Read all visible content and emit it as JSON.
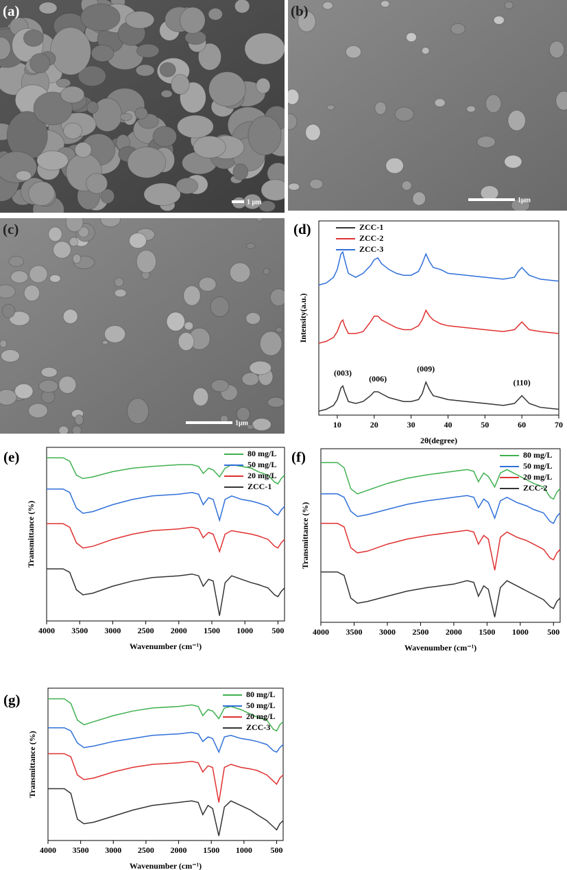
{
  "images": [
    {
      "label": "(a)",
      "scale_bar": "1 μm"
    },
    {
      "label": "(b)",
      "scale_bar": "1μm"
    },
    {
      "label": "(c)",
      "scale_bar": "1μm"
    }
  ],
  "chart_data": [
    {
      "type": "line",
      "panel_label": "(d)",
      "xlabel": "2θ(degree)",
      "ylabel": "Intensity(a.u.)",
      "x": [
        5,
        7,
        9,
        10,
        11,
        11.5,
        12,
        13,
        15,
        17,
        19,
        20,
        21,
        22,
        24,
        26,
        28,
        30,
        32,
        33,
        34,
        35,
        36,
        38,
        40,
        45,
        50,
        55,
        58,
        59,
        60,
        61,
        62,
        65,
        70
      ],
      "xlim": [
        5,
        70
      ],
      "xticks": [
        10,
        20,
        30,
        40,
        50,
        60,
        70
      ],
      "ylim": [
        0,
        100
      ],
      "legend": "upper left",
      "series": [
        {
          "name": "ZCC-1",
          "color": "#333333",
          "values": [
            2,
            3,
            5,
            8,
            14,
            15,
            12,
            7,
            6,
            7,
            10,
            12,
            12,
            11,
            9,
            8,
            7,
            7,
            8,
            11,
            17,
            13,
            10,
            9,
            8,
            7,
            6,
            5,
            6,
            8,
            10,
            8,
            6,
            4,
            3
          ]
        },
        {
          "name": "ZCC-2",
          "color": "#e03030",
          "values": [
            37,
            38,
            40,
            43,
            48,
            49,
            46,
            42,
            42,
            43,
            48,
            51,
            51,
            49,
            47,
            45,
            44,
            44,
            46,
            49,
            54,
            51,
            49,
            47,
            46,
            45,
            44,
            43,
            44,
            46,
            48,
            46,
            44,
            43,
            42
          ]
        },
        {
          "name": "ZCC-3",
          "color": "#2f6fd8",
          "values": [
            67,
            68,
            71,
            75,
            83,
            84,
            80,
            73,
            71,
            73,
            77,
            80,
            81,
            78,
            75,
            73,
            72,
            72,
            74,
            78,
            83,
            79,
            76,
            75,
            73,
            72,
            71,
            70,
            71,
            74,
            76,
            74,
            72,
            70,
            69
          ]
        }
      ],
      "annotations": [
        {
          "text": "(003)",
          "x": 11.5
        },
        {
          "text": "(006)",
          "x": 21
        },
        {
          "text": "(009)",
          "x": 34
        },
        {
          "text": "(110)",
          "x": 60
        }
      ]
    },
    {
      "type": "line",
      "panel_label": "(e)",
      "xlabel": "Wavenumber (cm⁻¹)",
      "ylabel": "Transmittance (%)",
      "x": [
        4000,
        3750,
        3650,
        3550,
        3450,
        3300,
        3000,
        2700,
        2400,
        2000,
        1800,
        1700,
        1630,
        1550,
        1480,
        1384,
        1300,
        1200,
        1050,
        900,
        800,
        650,
        550,
        500,
        450,
        400
      ],
      "xlim": [
        4000,
        400
      ],
      "xticks": [
        4000,
        3500,
        3000,
        2500,
        2000,
        1500,
        1000,
        500
      ],
      "ylim": [
        0,
        100
      ],
      "legend": "upper right",
      "series": [
        {
          "name": "80 mg/L",
          "color": "#3fb04f",
          "values": [
            94,
            94,
            92,
            84,
            82,
            83,
            86,
            88,
            89,
            90,
            90,
            89,
            85,
            88,
            87,
            83,
            88,
            90,
            89,
            88,
            86,
            84,
            80,
            79,
            82,
            84
          ]
        },
        {
          "name": "50 mg/L",
          "color": "#2f6fd8",
          "values": [
            76,
            76,
            74,
            65,
            62,
            63,
            67,
            70,
            72,
            73,
            74,
            73,
            67,
            71,
            70,
            58,
            70,
            72,
            70,
            69,
            68,
            66,
            62,
            61,
            64,
            66
          ]
        },
        {
          "name": "20 mg/L",
          "color": "#e03030",
          "values": [
            56,
            56,
            54,
            45,
            42,
            43,
            47,
            50,
            52,
            53,
            54,
            53,
            48,
            51,
            50,
            40,
            50,
            52,
            51,
            50,
            49,
            47,
            43,
            42,
            45,
            47
          ]
        },
        {
          "name": "ZCC-1",
          "color": "#333333",
          "values": [
            30,
            30,
            28,
            18,
            15,
            16,
            20,
            23,
            25,
            26,
            27,
            26,
            20,
            24,
            23,
            3,
            22,
            26,
            24,
            22,
            21,
            19,
            15,
            14,
            17,
            19
          ]
        }
      ]
    },
    {
      "type": "line",
      "panel_label": "(f)",
      "xlabel": "Wavenumber (cm⁻¹)",
      "ylabel": "Transmittance (%)",
      "x": [
        4000,
        3750,
        3650,
        3550,
        3450,
        3300,
        3000,
        2700,
        2400,
        2000,
        1800,
        1700,
        1630,
        1550,
        1480,
        1384,
        1300,
        1200,
        1050,
        900,
        800,
        650,
        550,
        500,
        450,
        400
      ],
      "xlim": [
        4000,
        400
      ],
      "xticks": [
        4000,
        3500,
        3000,
        2500,
        2000,
        1500,
        1000,
        500
      ],
      "ylim": [
        0,
        100
      ],
      "legend": "upper right",
      "series": [
        {
          "name": "80 mg/L",
          "color": "#3fb04f",
          "values": [
            92,
            92,
            89,
            77,
            74,
            76,
            80,
            83,
            85,
            87,
            88,
            87,
            81,
            86,
            84,
            78,
            86,
            88,
            85,
            82,
            80,
            78,
            72,
            71,
            75,
            77
          ]
        },
        {
          "name": "50 mg/L",
          "color": "#2f6fd8",
          "values": [
            74,
            74,
            72,
            64,
            61,
            62,
            65,
            68,
            70,
            72,
            73,
            72,
            66,
            71,
            69,
            60,
            70,
            72,
            69,
            67,
            65,
            63,
            58,
            57,
            61,
            63
          ]
        },
        {
          "name": "20 mg/L",
          "color": "#e03030",
          "values": [
            57,
            57,
            55,
            43,
            40,
            41,
            45,
            48,
            50,
            52,
            53,
            52,
            45,
            50,
            48,
            30,
            49,
            52,
            49,
            47,
            45,
            42,
            37,
            36,
            40,
            42
          ]
        },
        {
          "name": "ZCC-2",
          "color": "#333333",
          "values": [
            29,
            29,
            27,
            14,
            11,
            12,
            15,
            18,
            20,
            22,
            24,
            23,
            15,
            21,
            19,
            3,
            20,
            24,
            21,
            18,
            16,
            13,
            9,
            8,
            12,
            14
          ]
        }
      ]
    },
    {
      "type": "line",
      "panel_label": "(g)",
      "xlabel": "Wavenumber (cm⁻¹)",
      "ylabel": "Transmittance (%)",
      "x": [
        4000,
        3750,
        3650,
        3550,
        3450,
        3300,
        3000,
        2700,
        2400,
        2000,
        1800,
        1700,
        1630,
        1550,
        1480,
        1384,
        1300,
        1200,
        1050,
        900,
        800,
        650,
        550,
        500,
        450,
        400
      ],
      "xlim": [
        4000,
        400
      ],
      "xticks": [
        4000,
        3500,
        3000,
        2500,
        2000,
        1500,
        1000,
        500
      ],
      "ylim": [
        0,
        100
      ],
      "legend": "upper right",
      "series": [
        {
          "name": "80 mg/L",
          "color": "#3fb04f",
          "values": [
            93,
            93,
            90,
            79,
            76,
            78,
            82,
            85,
            87,
            88,
            89,
            88,
            82,
            86,
            85,
            80,
            87,
            88,
            86,
            83,
            81,
            79,
            73,
            72,
            76,
            78
          ]
        },
        {
          "name": "50 mg/L",
          "color": "#2f6fd8",
          "values": [
            74,
            74,
            72,
            64,
            61,
            62,
            65,
            67,
            69,
            70,
            71,
            70,
            65,
            68,
            67,
            58,
            68,
            69,
            67,
            66,
            65,
            63,
            59,
            58,
            61,
            63
          ]
        },
        {
          "name": "20 mg/L",
          "color": "#e03030",
          "values": [
            57,
            57,
            55,
            43,
            40,
            41,
            45,
            48,
            50,
            51,
            52,
            51,
            45,
            49,
            48,
            25,
            48,
            50,
            48,
            47,
            46,
            43,
            39,
            37,
            41,
            43
          ]
        },
        {
          "name": "ZCC-3",
          "color": "#333333",
          "values": [
            34,
            34,
            31,
            14,
            11,
            12,
            16,
            20,
            23,
            25,
            26,
            25,
            17,
            23,
            21,
            3,
            22,
            26,
            23,
            20,
            17,
            13,
            9,
            7,
            11,
            13
          ]
        }
      ]
    }
  ]
}
